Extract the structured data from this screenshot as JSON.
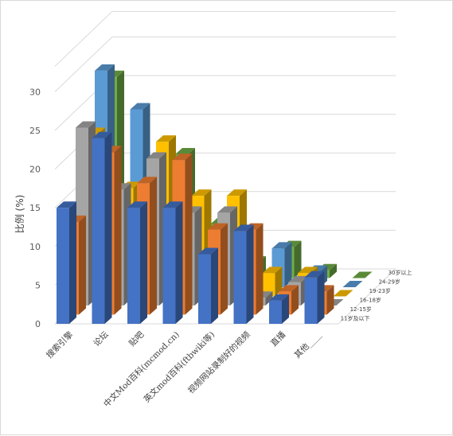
{
  "chart_data": {
    "type": "bar",
    "style": "3d-column",
    "ylabel": "比例 (%)",
    "ylim": [
      0,
      30
    ],
    "yticks": [
      0,
      5,
      10,
      15,
      20,
      25,
      30
    ],
    "grid": true,
    "legend": "depth-axis",
    "categories": [
      "搜索引擎",
      "论坛",
      "贴吧",
      "中文Mod百科(mcmod.cn)",
      "英文mod百科(ftbwiki等)",
      "视频网站录制好的视频",
      "直播",
      "其他____"
    ],
    "series": [
      {
        "name": "11岁及以下",
        "color": "#4472c4",
        "values": [
          15,
          24,
          15,
          15,
          9,
          12,
          3,
          6
        ]
      },
      {
        "name": "12-15岁",
        "color": "#ed7d31",
        "values": [
          12,
          21,
          17,
          20,
          11,
          11,
          3,
          3
        ]
      },
      {
        "name": "16-18岁",
        "color": "#a5a5a5",
        "values": [
          23,
          15,
          19,
          12,
          12,
          1,
          3,
          0
        ]
      },
      {
        "name": "19-23岁",
        "color": "#ffc000",
        "values": [
          21,
          14,
          20,
          13,
          13,
          3,
          3,
          0
        ]
      },
      {
        "name": "24-29岁",
        "color": "#5b9bd5",
        "values": [
          28,
          23,
          16,
          6,
          5,
          5,
          2,
          0
        ]
      },
      {
        "name": "30岁以上",
        "color": "#70ad47",
        "values": [
          26,
          13,
          16,
          7,
          2,
          4,
          1,
          0
        ]
      }
    ]
  }
}
